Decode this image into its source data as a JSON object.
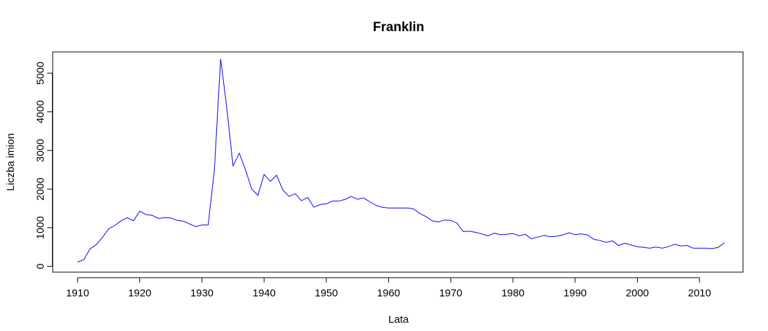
{
  "chart_data": {
    "type": "line",
    "title": "Franklin",
    "xlabel": "Lata",
    "ylabel": "Liczba imion",
    "xlim": [
      1906,
      2017
    ],
    "ylim": [
      -150,
      5550
    ],
    "x_ticks": [
      1910,
      1920,
      1930,
      1940,
      1950,
      1960,
      1970,
      1980,
      1990,
      2000,
      2010
    ],
    "y_ticks": [
      0,
      1000,
      2000,
      3000,
      4000,
      5000
    ],
    "grid": false,
    "line_color": "#0000ff",
    "series": [
      {
        "x": [
          1910,
          1911,
          1912,
          1913,
          1914,
          1915,
          1916,
          1917,
          1918,
          1919,
          1920,
          1921,
          1922,
          1923,
          1924,
          1925,
          1926,
          1927,
          1928,
          1929,
          1930,
          1931,
          1932,
          1933,
          1934,
          1935,
          1936,
          1937,
          1938,
          1939,
          1940,
          1941,
          1942,
          1943,
          1944,
          1945,
          1946,
          1947,
          1948,
          1949,
          1950,
          1951,
          1952,
          1953,
          1954,
          1955,
          1956,
          1957,
          1958,
          1959,
          1960,
          1961,
          1962,
          1963,
          1964,
          1965,
          1966,
          1967,
          1968,
          1969,
          1970,
          1971,
          1972,
          1973,
          1974,
          1975,
          1976,
          1977,
          1978,
          1979,
          1980,
          1981,
          1982,
          1983,
          1984,
          1985,
          1986,
          1987,
          1988,
          1989,
          1990,
          1991,
          1992,
          1993,
          1994,
          1995,
          1996,
          1997,
          1998,
          1999,
          2000,
          2001,
          2002,
          2003,
          2004,
          2005,
          2006,
          2007,
          2008,
          2009,
          2010,
          2011,
          2012,
          2013,
          2014
        ],
        "y": [
          110,
          170,
          450,
          560,
          750,
          970,
          1060,
          1180,
          1260,
          1180,
          1430,
          1340,
          1320,
          1240,
          1260,
          1250,
          1190,
          1170,
          1100,
          1030,
          1070,
          1070,
          2500,
          5370,
          4100,
          2600,
          2930,
          2500,
          2000,
          1840,
          2380,
          2200,
          2360,
          1980,
          1810,
          1880,
          1700,
          1780,
          1530,
          1600,
          1620,
          1690,
          1690,
          1730,
          1810,
          1740,
          1770,
          1670,
          1580,
          1530,
          1510,
          1510,
          1510,
          1510,
          1490,
          1370,
          1290,
          1180,
          1150,
          1200,
          1190,
          1120,
          900,
          910,
          880,
          840,
          790,
          860,
          820,
          830,
          850,
          790,
          830,
          710,
          760,
          800,
          770,
          780,
          810,
          870,
          820,
          840,
          810,
          700,
          670,
          620,
          660,
          540,
          600,
          550,
          510,
          490,
          470,
          500,
          470,
          510,
          570,
          530,
          540,
          470,
          470,
          470,
          460,
          490,
          610
        ]
      }
    ]
  }
}
